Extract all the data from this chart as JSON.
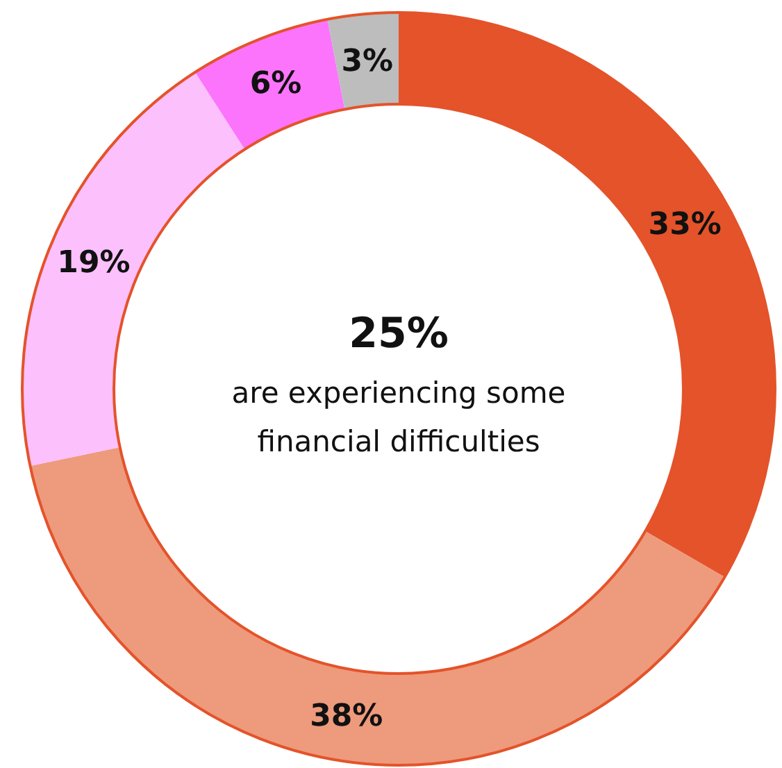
{
  "chart_data": {
    "type": "donut",
    "categories": [
      null,
      null,
      null,
      null,
      null
    ],
    "values": [
      33,
      38,
      19,
      6,
      3
    ],
    "value_labels": [
      "33%",
      "38%",
      "19%",
      "6%",
      "3%"
    ],
    "colors": [
      "#e4532a",
      "#ee9a7c",
      "#fcc0fc",
      "#fc74fc",
      "#bdbdbd"
    ],
    "annotations": [
      "25%",
      "are experiencing some financial difficulties"
    ]
  }
}
